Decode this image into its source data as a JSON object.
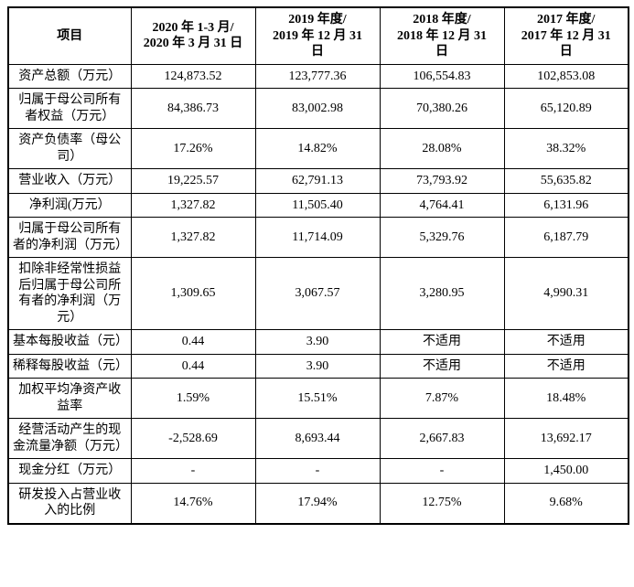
{
  "page": {
    "background_color": "#ffffff",
    "border_color": "#000000",
    "text_color": "#000000"
  },
  "table": {
    "columns": [
      "项目",
      "2020 年 1-3 月/\n2020 年 3 月 31 日",
      "2019 年度/\n2019 年 12 月 31\n日",
      "2018 年度/\n2018 年 12 月 31\n日",
      "2017 年度/\n2017 年 12 月 31\n日"
    ],
    "rows": [
      {
        "label": "资产总额（万元）",
        "values": [
          "124,873.52",
          "123,777.36",
          "106,554.83",
          "102,853.08"
        ]
      },
      {
        "label": "归属于母公司所有者权益（万元）",
        "values": [
          "84,386.73",
          "83,002.98",
          "70,380.26",
          "65,120.89"
        ]
      },
      {
        "label": "资产负债率（母公司）",
        "values": [
          "17.26%",
          "14.82%",
          "28.08%",
          "38.32%"
        ]
      },
      {
        "label": "营业收入（万元）",
        "values": [
          "19,225.57",
          "62,791.13",
          "73,793.92",
          "55,635.82"
        ]
      },
      {
        "label": "净利润(万元）",
        "values": [
          "1,327.82",
          "11,505.40",
          "4,764.41",
          "6,131.96"
        ]
      },
      {
        "label": "归属于母公司所有者的净利润（万元）",
        "values": [
          "1,327.82",
          "11,714.09",
          "5,329.76",
          "6,187.79"
        ]
      },
      {
        "label": "扣除非经常性损益后归属于母公司所有者的净利润（万元）",
        "values": [
          "1,309.65",
          "3,067.57",
          "3,280.95",
          "4,990.31"
        ]
      },
      {
        "label": "基本每股收益（元）",
        "values": [
          "0.44",
          "3.90",
          "不适用",
          "不适用"
        ]
      },
      {
        "label": "稀释每股收益（元）",
        "values": [
          "0.44",
          "3.90",
          "不适用",
          "不适用"
        ]
      },
      {
        "label": "加权平均净资产收益率",
        "values": [
          "1.59%",
          "15.51%",
          "7.87%",
          "18.48%"
        ]
      },
      {
        "label": "经营活动产生的现金流量净额（万元）",
        "values": [
          "-2,528.69",
          "8,693.44",
          "2,667.83",
          "13,692.17"
        ]
      },
      {
        "label": "现金分红（万元）",
        "values": [
          "-",
          "-",
          "-",
          "1,450.00"
        ]
      },
      {
        "label": "研发投入占营业收入的比例",
        "values": [
          "14.76%",
          "17.94%",
          "12.75%",
          "9.68%"
        ]
      }
    ]
  }
}
